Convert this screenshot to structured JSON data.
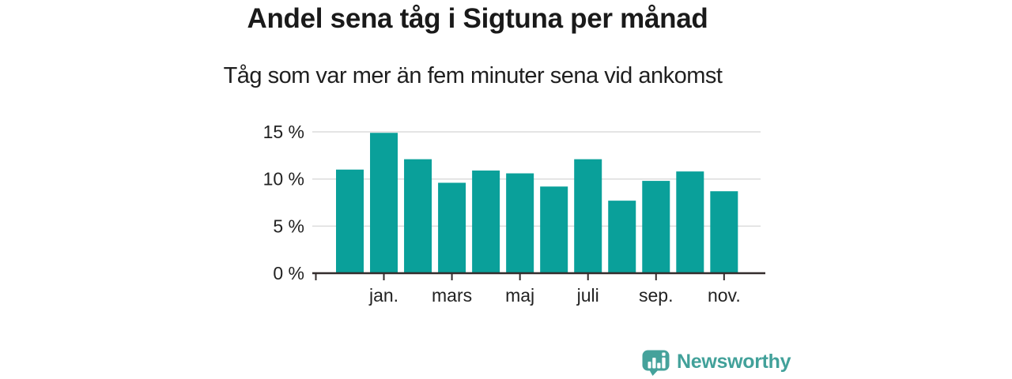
{
  "header": {
    "title": "Andel sena tåg i Sigtuna per månad",
    "subtitle": "Tåg som var mer än fem minuter sena vid ankomst"
  },
  "chart_data": {
    "type": "bar",
    "title": "Andel sena tåg i Sigtuna per månad",
    "subtitle": "Tåg som var mer än fem minuter sena vid ankomst",
    "categories": [
      "",
      "jan.",
      "",
      "mars",
      "",
      "maj",
      "",
      "juli",
      "",
      "sep.",
      "",
      "nov."
    ],
    "values": [
      11.0,
      14.9,
      12.1,
      9.6,
      10.9,
      10.6,
      9.2,
      12.1,
      7.7,
      9.8,
      10.8,
      8.7
    ],
    "unit": "%",
    "xlabel": "",
    "ylabel": "",
    "ylim": [
      0,
      15
    ],
    "y_ticks": [
      0,
      5,
      10,
      15
    ],
    "y_tick_labels": [
      "0 %",
      "5 %",
      "10 %",
      "15 %"
    ],
    "grid": true,
    "legend_position": "none",
    "bar_color": "#0aa09a"
  },
  "branding": {
    "logo_text": "Newsworthy",
    "logo_color": "#42a19a",
    "logo_icon": "speech-bubble-bar-chart-exclamation"
  },
  "colors": {
    "text": "#222222",
    "grid": "#dcdcdc",
    "axis": "#332c2c",
    "bar": "#0aa09a",
    "background": "#ffffff"
  }
}
